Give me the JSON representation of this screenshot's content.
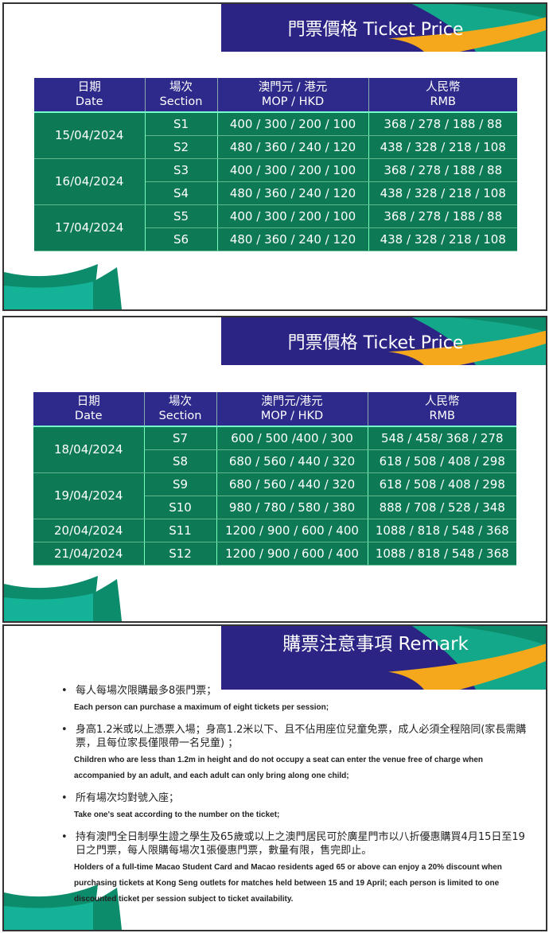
{
  "panel1": {
    "title": "門票價格 Ticket Price",
    "headers": [
      [
        "日期",
        "Date"
      ],
      [
        "場次",
        "Section"
      ],
      [
        "澳門元 / 港元",
        "MOP / HKD"
      ],
      [
        "人民幣",
        "RMB"
      ]
    ],
    "rows": [
      {
        "date": "15/04/2024",
        "section": "S1",
        "mop": "400 / 300 /  200 / 100",
        "rmb": "368 / 278 / 188 / 88"
      },
      {
        "section": "S2",
        "mop": "480 / 360 / 240 / 120",
        "rmb": "438 / 328 / 218 / 108"
      },
      {
        "date": "16/04/2024",
        "section": "S3",
        "mop": "400 / 300 / 200 / 100",
        "rmb": "368 / 278 / 188 / 88"
      },
      {
        "section": "S4",
        "mop": "480 / 360 / 240 / 120",
        "rmb": "438 / 328 / 218 / 108"
      },
      {
        "date": "17/04/2024",
        "section": "S5",
        "mop": "400 / 300 / 200 / 100",
        "rmb": "368 / 278 / 188 / 88"
      },
      {
        "section": "S6",
        "mop": "480 / 360 / 240 / 120",
        "rmb": "438 / 328 / 218 / 108"
      }
    ]
  },
  "panel2": {
    "title": "門票價格 Ticket Price",
    "headers": [
      [
        "日期",
        "Date"
      ],
      [
        "場次",
        "Section"
      ],
      [
        "澳門元/港元",
        "MOP / HKD"
      ],
      [
        "人民幣",
        "RMB"
      ]
    ],
    "rows": [
      {
        "date": "18/04/2024",
        "section": "S7",
        "mop": "600 / 500 /400 / 300",
        "rmb": "548 / 458/ 368 / 278"
      },
      {
        "section": "S8",
        "mop": "680 / 560 / 440 / 320",
        "rmb": "618 / 508 / 408 / 298"
      },
      {
        "date": "19/04/2024",
        "section": "S9",
        "mop": "680 / 560 / 440 / 320",
        "rmb": "618 / 508 / 408 / 298"
      },
      {
        "section": "S10",
        "mop": "980 / 780 / 580 / 380",
        "rmb": "888 / 708 / 528 / 348"
      },
      {
        "date": "20/04/2024",
        "section": "S11",
        "mop": "1200 / 900 / 600 / 400",
        "rmb": "1088 / 818 / 548 / 368"
      },
      {
        "date": "21/04/2024",
        "section": "S12",
        "mop": "1200 / 900 / 600 / 400",
        "rmb": "1088 / 818 / 548 / 368"
      }
    ]
  },
  "panel3": {
    "title": "購票注意事項 Remark",
    "items": [
      {
        "zh": "每人每場次限購最多8張門票；",
        "en": "Each person can purchase a maximum of eight tickets per session;"
      },
      {
        "zh": "身高1.2米或以上憑票入場；身高1.2米以下、且不佔用座位兒童免票，成人必須全程陪同(家長需購票，且每位家長僅限帶一名兒童) ；",
        "en": "Children who are less than 1.2m in height and do not occupy a seat can enter the venue free of charge when accompanied by an adult, and each adult can only bring along one child;"
      },
      {
        "zh": "所有場次均對號入座；",
        "en": "Take one's seat according to the number on the ticket;"
      },
      {
        "zh": "持有澳門全日制學生證之學生及65歲或以上之澳門居民可於廣星門市以八折優惠購買4月15日至19日之門票，每人限購每場次1張優惠門票，數量有限，售完即止。",
        "en": "Holders of a full-time Macao Student Card and Macao residents aged 65 or above can enjoy a 20% discount when purchasing tickets at Kong Seng outlets for matches held between 15 and 19 April; each person is limited to one discounted ticket per session subject to ticket availability."
      }
    ]
  },
  "colors": {
    "header": "#2e2a8c",
    "cell": "#0d7a55",
    "banner": "#2b2484",
    "accent_teal": "#14a88a",
    "accent_orange": "#f5a81c"
  }
}
